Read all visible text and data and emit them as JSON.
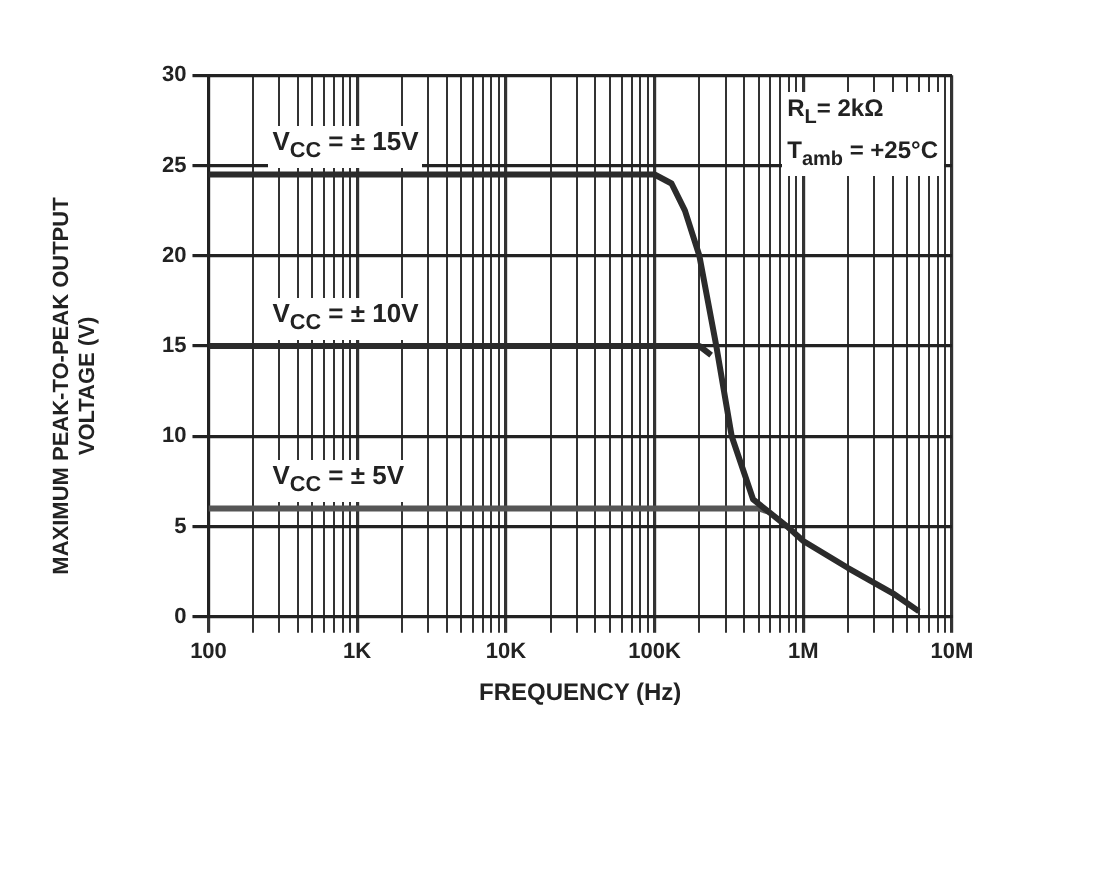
{
  "chart_data": {
    "type": "line",
    "xlabel": "FREQUENCY (Hz)",
    "ylabel": "MAXIMUM PEAK-TO-PEAK OUTPUT VOLTAGE (V)",
    "log": "x",
    "grid": true,
    "legend": false,
    "marker": "none",
    "line_style": "solid",
    "xlim": [
      100,
      10000000
    ],
    "ylim": [
      0,
      30
    ],
    "xticks": [
      100,
      {
        "value": 200,
        "label": null
      },
      {
        "value": 300,
        "label": null
      },
      {
        "value": 400,
        "label": null
      },
      {
        "value": 500,
        "label": null
      },
      {
        "value": 600,
        "label": null
      },
      {
        "value": 700,
        "label": null
      },
      {
        "value": 800,
        "label": null
      },
      {
        "value": 900,
        "label": null
      },
      {
        "value": 1000,
        "label": "1K"
      },
      {
        "value": 2000,
        "label": null
      },
      {
        "value": 3000,
        "label": null
      },
      {
        "value": 4000,
        "label": null
      },
      {
        "value": 5000,
        "label": null
      },
      {
        "value": 6000,
        "label": null
      },
      {
        "value": 7000,
        "label": null
      },
      {
        "value": 8000,
        "label": null
      },
      {
        "value": 9000,
        "label": null
      },
      {
        "value": 10000,
        "label": "10K"
      },
      {
        "value": 20000,
        "label": null
      },
      {
        "value": 30000,
        "label": null
      },
      {
        "value": 40000,
        "label": null
      },
      {
        "value": 50000,
        "label": null
      },
      {
        "value": 60000,
        "label": null
      },
      {
        "value": 70000,
        "label": null
      },
      {
        "value": 80000,
        "label": null
      },
      {
        "value": 90000,
        "label": null
      },
      {
        "value": 100000,
        "label": "100K"
      },
      {
        "value": 200000,
        "label": null
      },
      {
        "value": 300000,
        "label": null
      },
      {
        "value": 400000,
        "label": null
      },
      {
        "value": 500000,
        "label": null
      },
      {
        "value": 600000,
        "label": null
      },
      {
        "value": 700000,
        "label": null
      },
      {
        "value": 800000,
        "label": null
      },
      {
        "value": 900000,
        "label": null
      },
      {
        "value": 1000000,
        "label": "1M"
      },
      {
        "value": 2000000,
        "label": null
      },
      {
        "value": 3000000,
        "label": null
      },
      {
        "value": 4000000,
        "label": null
      },
      {
        "value": 5000000,
        "label": null
      },
      {
        "value": 6000000,
        "label": null
      },
      {
        "value": 7000000,
        "label": null
      },
      {
        "value": 8000000,
        "label": null
      },
      {
        "value": 9000000,
        "label": null
      },
      {
        "value": 10000000,
        "label": "10M"
      }
    ],
    "yticks": [
      0,
      5,
      10,
      15,
      20,
      25,
      30
    ],
    "series": [
      {
        "name": "V$_{CC}$ = ± 15V",
        "color": "#2b2b2b",
        "x": [
          100,
          100000,
          130000,
          160000,
          200000,
          260000,
          330000,
          460000,
          780000,
          1000000,
          2000000,
          4000000,
          6000000
        ],
        "values": [
          24.5,
          24.5,
          24,
          22.5,
          20,
          15,
          10,
          6.5,
          5,
          4.2,
          2.7,
          1.3,
          0.3
        ]
      },
      {
        "name": "V$_{CC}$ = ± 10V",
        "color": "#2b2b2b",
        "x": [
          100,
          200000,
          240000
        ],
        "values": [
          15,
          15,
          14.5
        ]
      },
      {
        "name": "V$_{CC}$ = ± 5V",
        "color": "#555555",
        "x": [
          100,
          500000,
          600000
        ],
        "values": [
          6,
          6,
          5.8
        ]
      }
    ],
    "annotations": [
      "R$_{L}$= 2kΩ",
      "T$_{amb}$ = +25°C"
    ]
  }
}
